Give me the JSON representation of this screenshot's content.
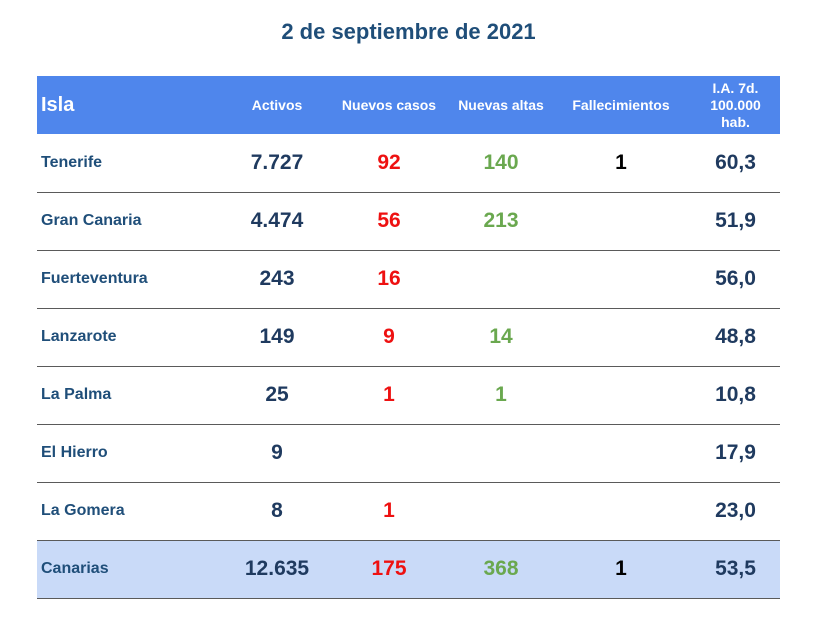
{
  "title": "2 de septiembre de 2021",
  "headers": {
    "isla": "Isla",
    "activos": "Activos",
    "nuevos": "Nuevos casos",
    "altas": "Nuevas altas",
    "fallecimientos": "Fallecimientos",
    "ia_line1": "I.A. 7d.",
    "ia_line2": "100.000",
    "ia_line3": "hab."
  },
  "rows": [
    {
      "isla": "Tenerife",
      "activos": "7.727",
      "nuevos": "92",
      "altas": "140",
      "fallecimientos": "1",
      "ia": "60,3"
    },
    {
      "isla": "Gran Canaria",
      "activos": "4.474",
      "nuevos": "56",
      "altas": "213",
      "fallecimientos": "",
      "ia": "51,9"
    },
    {
      "isla": "Fuerteventura",
      "activos": "243",
      "nuevos": "16",
      "altas": "",
      "fallecimientos": "",
      "ia": "56,0"
    },
    {
      "isla": "Lanzarote",
      "activos": "149",
      "nuevos": "9",
      "altas": "14",
      "fallecimientos": "",
      "ia": "48,8"
    },
    {
      "isla": "La Palma",
      "activos": "25",
      "nuevos": "1",
      "altas": "1",
      "fallecimientos": "",
      "ia": "10,8"
    },
    {
      "isla": "El Hierro",
      "activos": "9",
      "nuevos": "",
      "altas": "",
      "fallecimientos": "",
      "ia": "17,9"
    },
    {
      "isla": "La Gomera",
      "activos": "8",
      "nuevos": "1",
      "altas": "",
      "fallecimientos": "",
      "ia": "23,0"
    }
  ],
  "total": {
    "isla": "Canarias",
    "activos": "12.635",
    "nuevos": "175",
    "altas": "368",
    "fallecimientos": "1",
    "ia": "53,5"
  },
  "colors": {
    "header_bg": "#4f86ec",
    "title": "#1f4e79",
    "nuevos": "#ee1111",
    "altas": "#6aa84f",
    "total_bg": "#c9daf8"
  }
}
